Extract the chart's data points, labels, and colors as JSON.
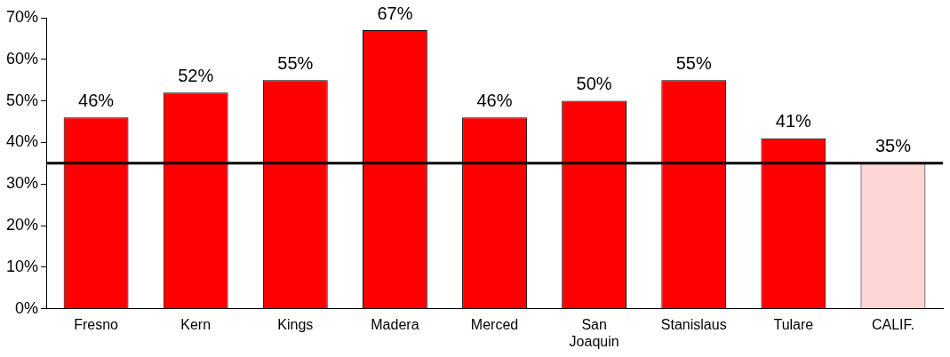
{
  "chart_data": {
    "type": "bar",
    "categories": [
      "Fresno",
      "Kern",
      "Kings",
      "Madera",
      "Merced",
      "San Joaquin",
      "Stanislaus",
      "Tulare",
      "CALIF."
    ],
    "values": [
      46,
      52,
      55,
      67,
      46,
      50,
      55,
      41,
      35
    ],
    "colors": [
      "#ff0000",
      "#ff0000",
      "#ff0000",
      "#ff0000",
      "#ff0000",
      "#ff0000",
      "#ff0000",
      "#ff0000",
      "#ffd6d6"
    ],
    "value_labels": [
      "46%",
      "52%",
      "55%",
      "67%",
      "46%",
      "50%",
      "55%",
      "41%",
      "35%"
    ],
    "ylim": [
      0,
      70
    ],
    "yticks": [
      {
        "value": 0,
        "label": "0%"
      },
      {
        "value": 10,
        "label": "10%"
      },
      {
        "value": 20,
        "label": "20%"
      },
      {
        "value": 30,
        "label": "30%"
      },
      {
        "value": 40,
        "label": "40%"
      },
      {
        "value": 50,
        "label": "50%"
      },
      {
        "value": 60,
        "label": "60%"
      },
      {
        "value": 70,
        "label": "70%"
      }
    ],
    "ref_lines": [
      {
        "axis": "y",
        "value": 35,
        "color": "#000000"
      }
    ],
    "grid": false,
    "legend": false
  }
}
